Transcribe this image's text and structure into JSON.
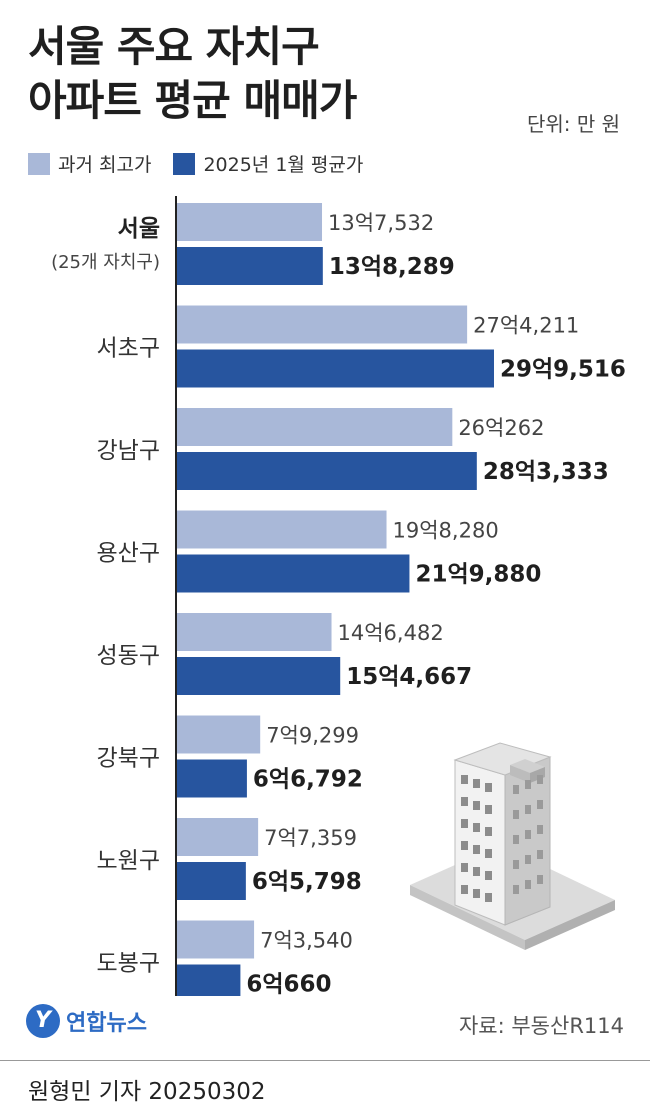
{
  "header": {
    "title_line1": "서울 주요 자치구",
    "title_line2": "아파트 평균 매매가",
    "unit": "단위: 만 원"
  },
  "legend": {
    "past": "과거 최고가",
    "current": "2025년 1월 평균가"
  },
  "colors": {
    "past": "#a9b8d8",
    "current": "#27559f",
    "axis": "#222222"
  },
  "chart_data": {
    "type": "bar",
    "orientation": "horizontal",
    "unit": "만 원",
    "categories": [
      "서울",
      "서초구",
      "강남구",
      "용산구",
      "성동구",
      "강북구",
      "노원구",
      "도봉구"
    ],
    "category_sublabels": [
      "(25개 자치구)",
      "",
      "",
      "",
      "",
      "",
      "",
      ""
    ],
    "series": [
      {
        "name": "과거 최고가",
        "values": [
          137532,
          274211,
          260262,
          198280,
          146482,
          79299,
          77359,
          73540
        ],
        "labels": [
          "13억7,532",
          "27억4,211",
          "26억262",
          "19억8,280",
          "14억6,482",
          "7억9,299",
          "7억7,359",
          "7억3,540"
        ]
      },
      {
        "name": "2025년 1월 평균가",
        "values": [
          138289,
          299516,
          283333,
          219880,
          154667,
          66792,
          65798,
          60660
        ],
        "labels": [
          "13억8,289",
          "29억9,516",
          "28억3,333",
          "21억9,880",
          "15억4,667",
          "6억6,792",
          "6억5,798",
          "6억660"
        ]
      }
    ],
    "legend_position": "top-left",
    "grid": false
  },
  "footer": {
    "logo_mark": "Y",
    "logo_text": "연합뉴스",
    "source": "자료: 부동산R114",
    "byline": "원형민 기자  20250302"
  }
}
